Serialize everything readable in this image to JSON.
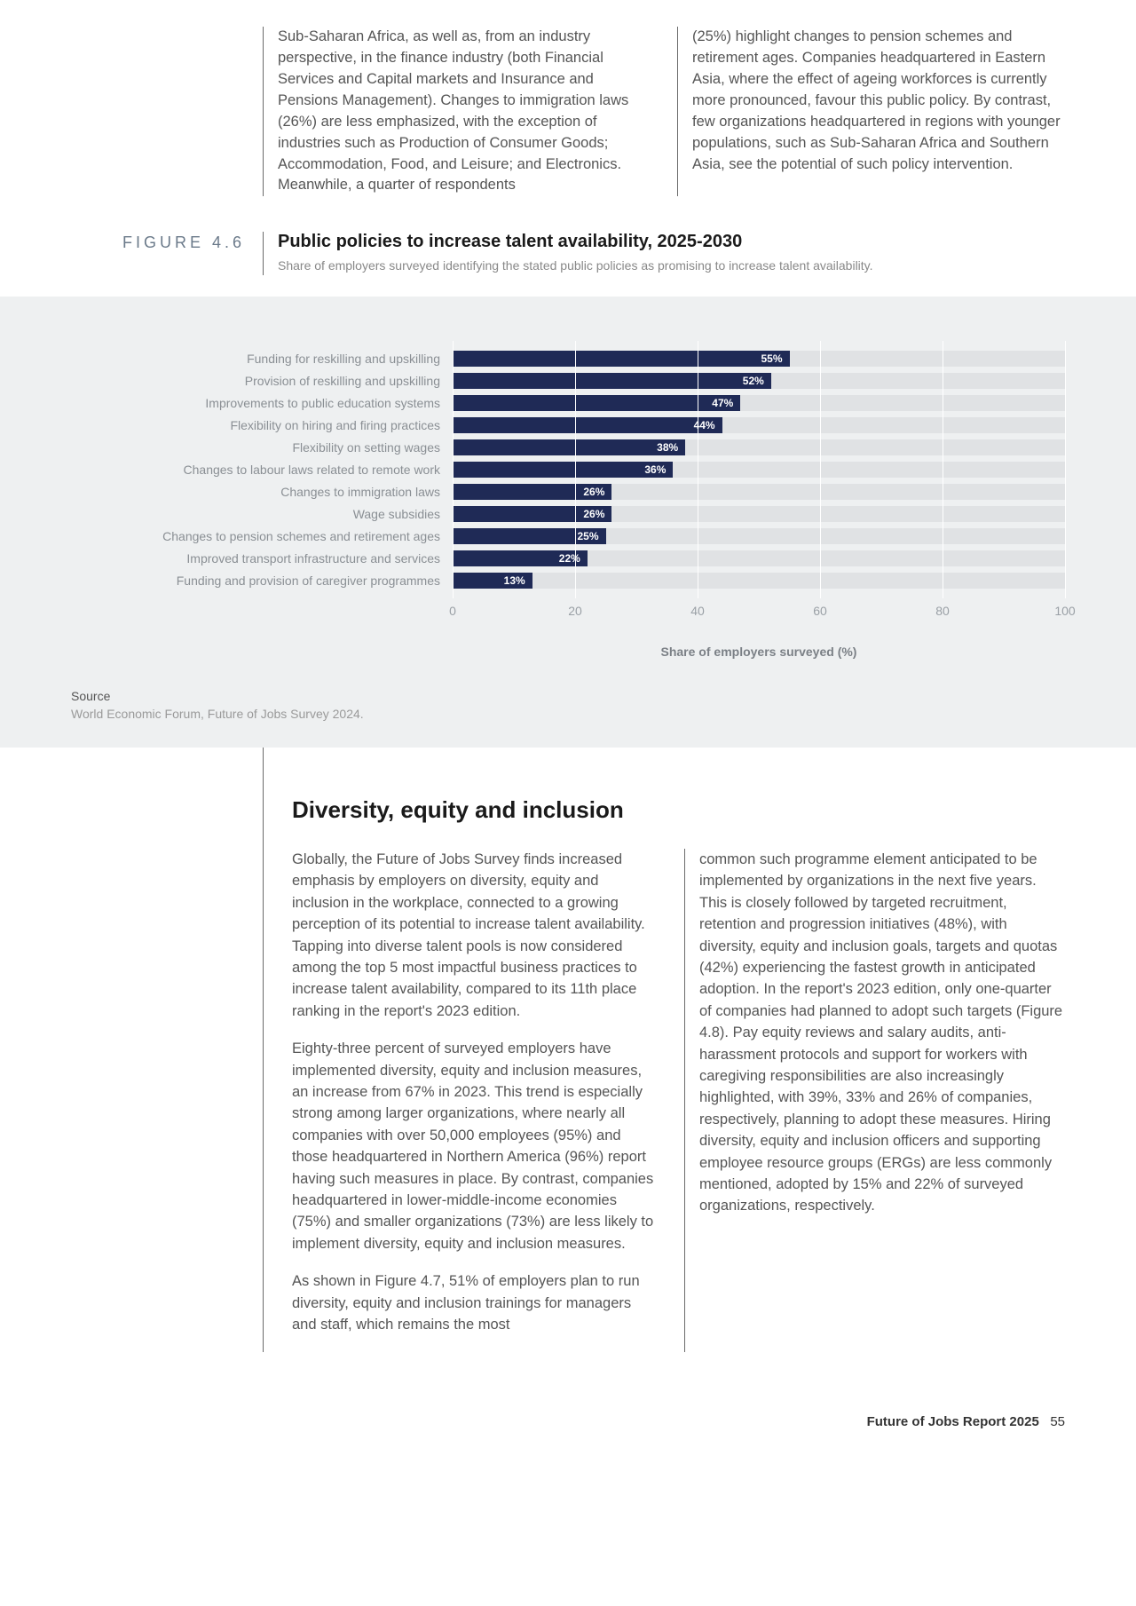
{
  "intro": {
    "left": "Sub-Saharan Africa, as well as, from an industry perspective, in the finance industry (both Financial Services and Capital markets and Insurance and Pensions Management). Changes to immigration laws (26%) are less emphasized, with the exception of industries such as Production of Consumer Goods; Accommodation, Food, and Leisure; and Electronics. Meanwhile, a quarter of respondents",
    "right": "(25%) highlight changes to pension schemes and retirement ages. Companies headquartered in Eastern Asia, where the effect of ageing workforces is currently more pronounced, favour this public policy. By contrast, few organizations headquartered in regions with younger populations, such as Sub-Saharan Africa and Southern Asia, see the potential of such policy intervention."
  },
  "figure": {
    "number": "FIGURE 4.6",
    "title": "Public policies to increase talent availability, 2025-2030",
    "subtitle": "Share of employers surveyed identifying the stated public policies as promising to increase talent availability.",
    "x_axis_title": "Share of employers surveyed (%)",
    "x_ticks": [
      0,
      20,
      40,
      60,
      80,
      100
    ],
    "xlim": [
      0,
      100
    ],
    "bar_color": "#1f2a56",
    "bar_bg_color": "#e0e2e4",
    "chart_bg": "#eef0f1",
    "grid_color": "#ffffff",
    "categories": [
      {
        "label": "Funding for reskilling and upskilling",
        "value": 55
      },
      {
        "label": "Provision of reskilling and upskilling",
        "value": 52
      },
      {
        "label": "Improvements to public education systems",
        "value": 47
      },
      {
        "label": "Flexibility on hiring and firing practices",
        "value": 44
      },
      {
        "label": "Flexibility on setting wages",
        "value": 38
      },
      {
        "label": "Changes to labour laws related to remote work",
        "value": 36
      },
      {
        "label": "Changes to immigration laws",
        "value": 26
      },
      {
        "label": "Wage subsidies",
        "value": 26
      },
      {
        "label": "Changes to pension schemes and retirement ages",
        "value": 25
      },
      {
        "label": "Improved transport infrastructure and services",
        "value": 22
      },
      {
        "label": "Funding and provision of caregiver programmes",
        "value": 13
      }
    ],
    "source_label": "Source",
    "source_text": "World Economic Forum, Future of Jobs Survey 2024."
  },
  "section": {
    "title": "Diversity, equity and inclusion",
    "left_paras": [
      "Globally, the Future of Jobs Survey finds increased emphasis by employers on diversity, equity and inclusion in the workplace, connected to a growing perception of its potential to increase talent availability. Tapping into diverse talent pools is now considered among the top 5 most impactful business practices to increase talent availability, compared to its 11th place ranking in the report's 2023 edition.",
      "Eighty-three percent of surveyed employers have implemented diversity, equity and inclusion measures, an increase from 67% in 2023. This trend is especially strong among larger organizations, where nearly all companies with over 50,000 employees (95%) and those headquartered in Northern America (96%) report having such measures in place. By contrast, companies headquartered in lower-middle-income economies (75%) and smaller organizations (73%) are less likely to implement diversity, equity and inclusion measures.",
      "As shown in Figure 4.7, 51% of employers plan to run diversity, equity and inclusion trainings for managers and staff, which remains the most"
    ],
    "right_paras": [
      "common such programme element anticipated to be implemented by organizations in the next five years. This is closely followed by targeted recruitment, retention and progression initiatives (48%), with diversity, equity and inclusion goals, targets and quotas (42%) experiencing the fastest growth in anticipated adoption. In the report's 2023 edition, only one-quarter of companies had planned to adopt such targets (Figure 4.8). Pay equity reviews and salary audits, anti-harassment protocols and support for workers with caregiving responsibilities are also increasingly highlighted, with 39%, 33% and 26% of companies, respectively, planning to adopt these measures. Hiring diversity, equity and inclusion officers and supporting employee resource groups (ERGs) are less commonly mentioned, adopted by 15% and 22% of surveyed organizations, respectively."
    ]
  },
  "footer": {
    "report": "Future of Jobs Report 2025",
    "page": "55"
  }
}
